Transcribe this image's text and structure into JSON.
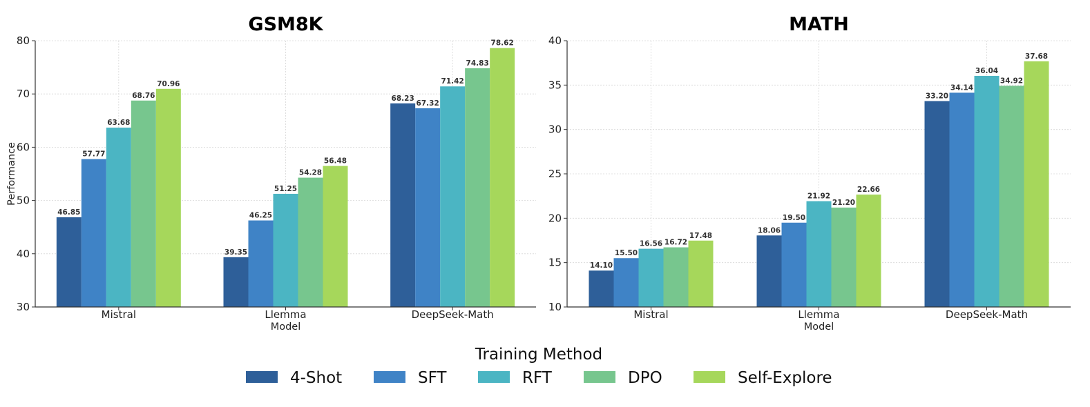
{
  "chart_data": [
    {
      "type": "bar",
      "title": "GSM8K",
      "xlabel": "Model",
      "ylabel": "Performance",
      "ylim": [
        30,
        80
      ],
      "yticks": [
        30,
        40,
        50,
        60,
        70,
        80
      ],
      "grid": true,
      "categories": [
        "Mistral",
        "Llemma",
        "DeepSeek-Math"
      ],
      "series": [
        {
          "name": "4-Shot",
          "color": "#2e5f99",
          "values": [
            46.85,
            39.35,
            68.23
          ]
        },
        {
          "name": "SFT",
          "color": "#3f83c6",
          "values": [
            57.77,
            46.25,
            67.32
          ]
        },
        {
          "name": "RFT",
          "color": "#4bb5c3",
          "values": [
            63.68,
            51.25,
            71.42
          ]
        },
        {
          "name": "DPO",
          "color": "#77c68e",
          "values": [
            68.76,
            54.28,
            74.83
          ]
        },
        {
          "name": "Self-Explore",
          "color": "#a6d75b",
          "values": [
            70.96,
            56.48,
            78.62
          ]
        }
      ],
      "value_labels": [
        [
          "46.85",
          "39.35",
          "68.23"
        ],
        [
          "57.77",
          "46.25",
          "67.32"
        ],
        [
          "63.68",
          "51.25",
          "71.42"
        ],
        [
          "68.76",
          "54.28",
          "74.83"
        ],
        [
          "70.96",
          "56.48",
          "78.62"
        ]
      ]
    },
    {
      "type": "bar",
      "title": "MATH",
      "xlabel": "Model",
      "ylabel": "",
      "ylim": [
        10,
        40
      ],
      "yticks": [
        10,
        15,
        20,
        25,
        30,
        35,
        40
      ],
      "grid": true,
      "categories": [
        "Mistral",
        "Llemma",
        "DeepSeek-Math"
      ],
      "series": [
        {
          "name": "4-Shot",
          "color": "#2e5f99",
          "values": [
            14.1,
            18.06,
            33.2
          ]
        },
        {
          "name": "SFT",
          "color": "#3f83c6",
          "values": [
            15.5,
            19.5,
            34.14
          ]
        },
        {
          "name": "RFT",
          "color": "#4bb5c3",
          "values": [
            16.56,
            21.92,
            36.04
          ]
        },
        {
          "name": "DPO",
          "color": "#77c68e",
          "values": [
            16.72,
            21.2,
            34.92
          ]
        },
        {
          "name": "Self-Explore",
          "color": "#a6d75b",
          "values": [
            17.48,
            22.66,
            37.68
          ]
        }
      ],
      "value_labels": [
        [
          "14.10",
          "18.06",
          "33.20"
        ],
        [
          "15.50",
          "19.50",
          "34.14"
        ],
        [
          "16.56",
          "21.92",
          "36.04"
        ],
        [
          "16.72",
          "21.20",
          "34.92"
        ],
        [
          "17.48",
          "22.66",
          "37.68"
        ]
      ]
    }
  ],
  "legend": {
    "title": "Training Method",
    "placement": "bottom-center",
    "items": [
      {
        "label": "4-Shot",
        "color": "#2e5f99"
      },
      {
        "label": "SFT",
        "color": "#3f83c6"
      },
      {
        "label": "RFT",
        "color": "#4bb5c3"
      },
      {
        "label": "DPO",
        "color": "#77c68e"
      },
      {
        "label": "Self-Explore",
        "color": "#a6d75b"
      }
    ]
  }
}
